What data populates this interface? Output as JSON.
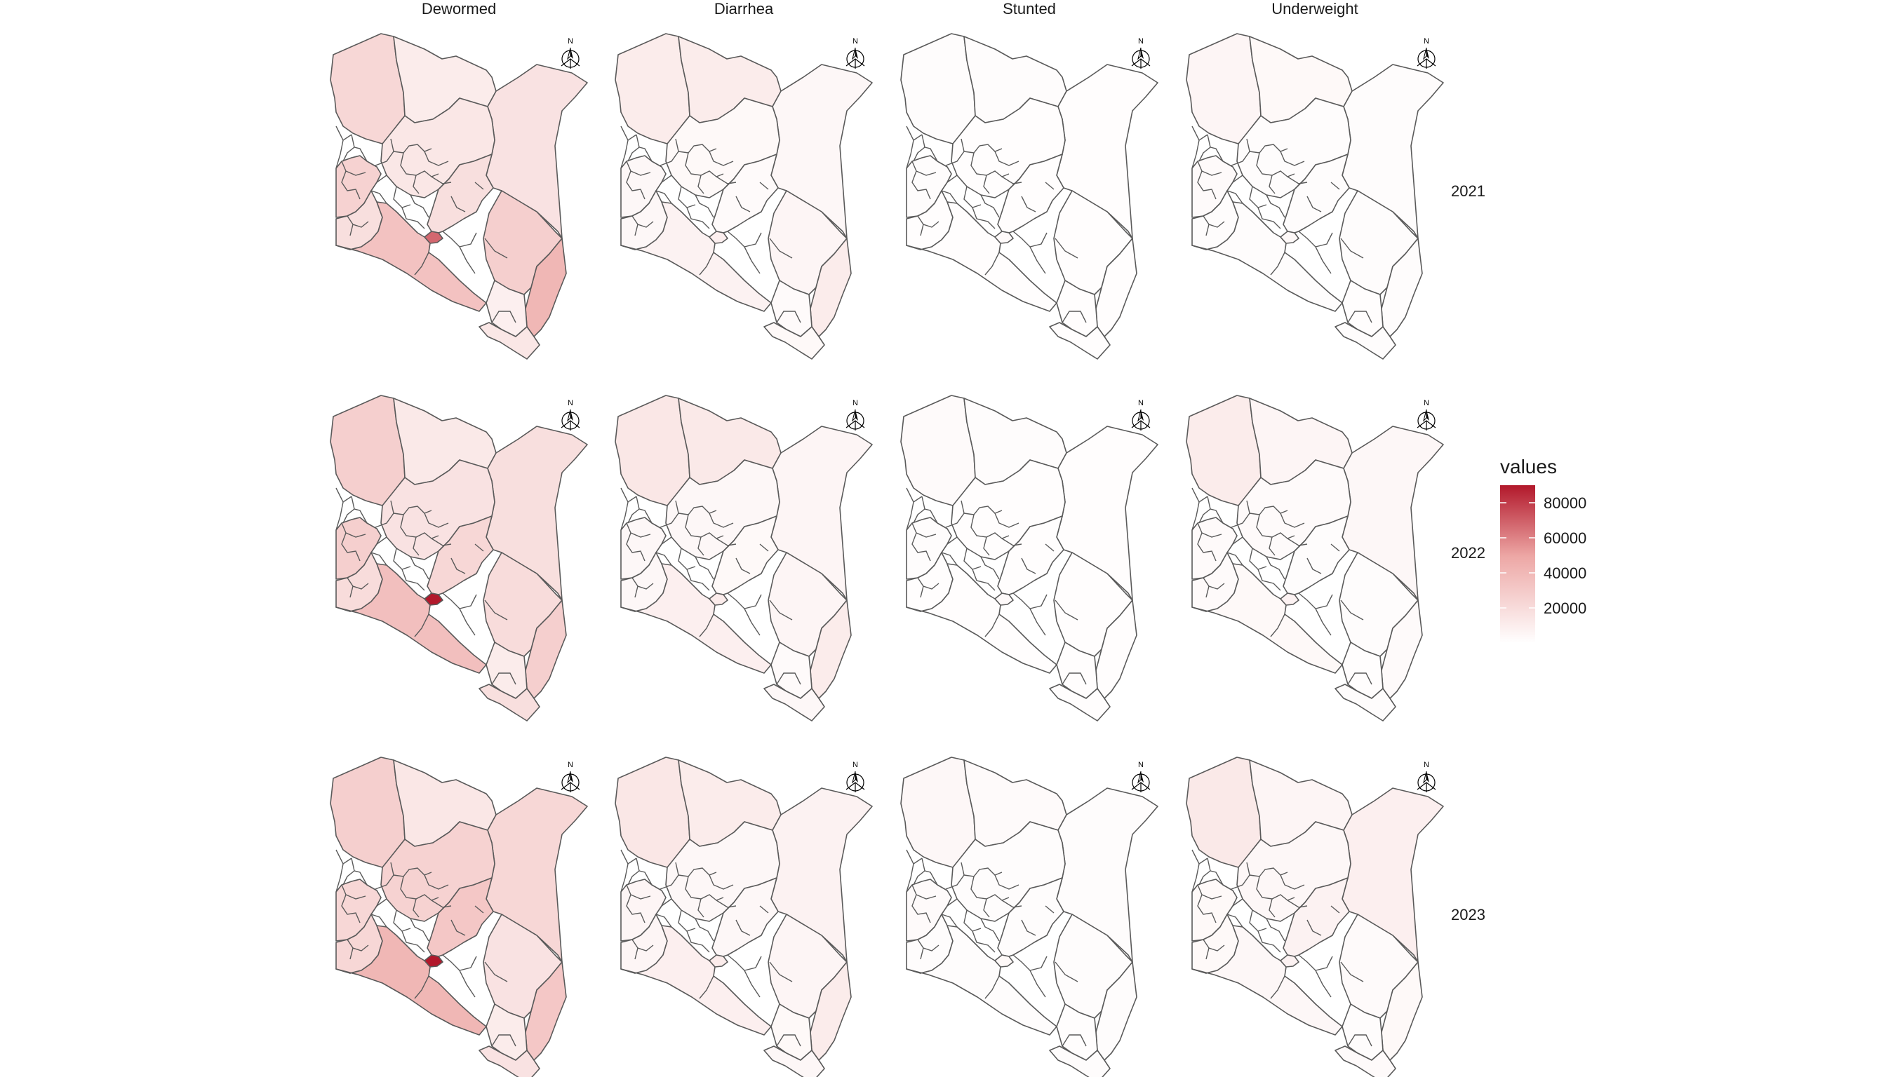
{
  "figure": {
    "columns": [
      "Dewormed",
      "Diarrhea",
      "Stunted",
      "Underweight"
    ],
    "rows": [
      "2021",
      "2022",
      "2023"
    ],
    "north_label": "N"
  },
  "legend": {
    "title": "values",
    "ticks": [
      "80000",
      "60000",
      "40000",
      "20000"
    ],
    "tick_values": [
      80000,
      60000,
      40000,
      20000
    ],
    "min": 0,
    "max": 90000,
    "color_low": "#ffffff",
    "color_high": "#b2182b"
  },
  "maps": [
    {
      "column": "Dewormed",
      "row": "2021",
      "intensity": {
        "nw": 0.25,
        "ne": 0.12,
        "east": 0.18,
        "w1": 0.28,
        "w2": 0.2,
        "sw": 0.38,
        "nai": 0.75,
        "cen": 0.15,
        "cst": 0.45,
        "se": 0.3,
        "mid": 0.2,
        "sth": 0.1,
        "small": 0.15
      }
    },
    {
      "column": "Diarrhea",
      "row": "2021",
      "intensity": {
        "nw": 0.12,
        "ne": 0.12,
        "east": 0.05,
        "w1": 0.05,
        "w2": 0.05,
        "sw": 0.08,
        "nai": 0.1,
        "cen": 0.04,
        "cst": 0.12,
        "se": 0.06,
        "mid": 0.03,
        "sth": 0.03,
        "small": 0.04
      }
    },
    {
      "column": "Stunted",
      "row": "2021",
      "intensity": {
        "nw": 0.02,
        "ne": 0.02,
        "east": 0.01,
        "w1": 0.02,
        "w2": 0.01,
        "sw": 0.01,
        "nai": 0.03,
        "cen": 0.01,
        "cst": 0.01,
        "se": 0.01,
        "mid": 0.01,
        "sth": 0.01,
        "small": 0.01
      }
    },
    {
      "column": "Underweight",
      "row": "2021",
      "intensity": {
        "nw": 0.06,
        "ne": 0.04,
        "east": 0.02,
        "w1": 0.03,
        "w2": 0.02,
        "sw": 0.02,
        "nai": 0.04,
        "cen": 0.02,
        "cst": 0.02,
        "se": 0.02,
        "mid": 0.02,
        "sth": 0.01,
        "small": 0.02
      }
    },
    {
      "column": "Dewormed",
      "row": "2022",
      "intensity": {
        "nw": 0.3,
        "ne": 0.14,
        "east": 0.2,
        "w1": 0.3,
        "w2": 0.22,
        "sw": 0.4,
        "nai": 1.0,
        "cen": 0.18,
        "cst": 0.3,
        "se": 0.22,
        "mid": 0.25,
        "sth": 0.12,
        "small": 0.2
      }
    },
    {
      "column": "Diarrhea",
      "row": "2022",
      "intensity": {
        "nw": 0.15,
        "ne": 0.14,
        "east": 0.06,
        "w1": 0.05,
        "w2": 0.05,
        "sw": 0.1,
        "nai": 0.12,
        "cen": 0.05,
        "cst": 0.12,
        "se": 0.06,
        "mid": 0.04,
        "sth": 0.03,
        "small": 0.05
      }
    },
    {
      "column": "Stunted",
      "row": "2022",
      "intensity": {
        "nw": 0.03,
        "ne": 0.02,
        "east": 0.01,
        "w1": 0.02,
        "w2": 0.01,
        "sw": 0.01,
        "nai": 0.03,
        "cen": 0.01,
        "cst": 0.01,
        "se": 0.01,
        "mid": 0.01,
        "sth": 0.01,
        "small": 0.01
      }
    },
    {
      "column": "Underweight",
      "row": "2022",
      "intensity": {
        "nw": 0.12,
        "ne": 0.06,
        "east": 0.05,
        "w1": 0.03,
        "w2": 0.03,
        "sw": 0.04,
        "nai": 0.08,
        "cen": 0.03,
        "cst": 0.03,
        "se": 0.02,
        "mid": 0.02,
        "sth": 0.01,
        "small": 0.02
      }
    },
    {
      "column": "Dewormed",
      "row": "2023",
      "intensity": {
        "nw": 0.3,
        "ne": 0.15,
        "east": 0.25,
        "w1": 0.25,
        "w2": 0.25,
        "sw": 0.45,
        "nai": 1.0,
        "cen": 0.28,
        "cst": 0.35,
        "se": 0.18,
        "mid": 0.35,
        "sth": 0.12,
        "small": 0.18
      }
    },
    {
      "column": "Diarrhea",
      "row": "2023",
      "intensity": {
        "nw": 0.15,
        "ne": 0.12,
        "east": 0.08,
        "w1": 0.06,
        "w2": 0.06,
        "sw": 0.1,
        "nai": 0.12,
        "cen": 0.05,
        "cst": 0.12,
        "se": 0.06,
        "mid": 0.05,
        "sth": 0.04,
        "small": 0.05
      }
    },
    {
      "column": "Stunted",
      "row": "2023",
      "intensity": {
        "nw": 0.05,
        "ne": 0.03,
        "east": 0.02,
        "w1": 0.03,
        "w2": 0.02,
        "sw": 0.02,
        "nai": 0.04,
        "cen": 0.02,
        "cst": 0.02,
        "se": 0.02,
        "mid": 0.02,
        "sth": 0.01,
        "small": 0.02
      }
    },
    {
      "column": "Underweight",
      "row": "2023",
      "intensity": {
        "nw": 0.14,
        "ne": 0.06,
        "east": 0.1,
        "w1": 0.04,
        "w2": 0.04,
        "sw": 0.05,
        "nai": 0.08,
        "cen": 0.05,
        "cst": 0.04,
        "se": 0.03,
        "mid": 0.08,
        "sth": 0.02,
        "small": 0.03
      }
    }
  ]
}
